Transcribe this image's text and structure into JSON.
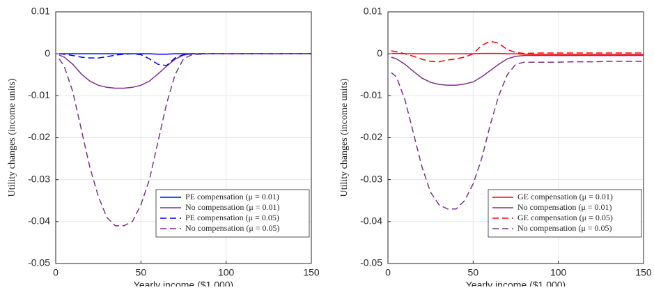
{
  "chart_data": [
    {
      "type": "line",
      "y_label": "Utility changes (income units)",
      "x_label": "Yearly income ($1,000)",
      "xlim": [
        0,
        150
      ],
      "xticks": [
        0,
        50,
        100,
        150
      ],
      "ylim": [
        -0.05,
        0.01
      ],
      "yticks": [
        0.01,
        0,
        -0.01,
        -0.02,
        -0.03,
        -0.04,
        -0.05
      ],
      "grid": true,
      "legend": "lower right",
      "x": [
        2,
        5,
        10,
        15,
        20,
        25,
        30,
        35,
        40,
        45,
        50,
        55,
        60,
        65,
        70,
        75,
        80,
        90,
        100,
        110,
        120,
        130,
        140,
        150
      ],
      "series": [
        {
          "name": "PE compensation (μ = 0.01)",
          "color": "#0000ff",
          "dashed": false,
          "values": [
            0,
            0,
            0,
            0,
            0,
            0,
            0,
            0,
            0,
            0,
            0,
            0,
            -0.0001,
            -0.0001,
            0,
            0,
            0,
            0,
            0,
            0,
            0,
            0,
            0,
            0
          ]
        },
        {
          "name": "No compensation (μ = 0.01)",
          "color": "#7e2f8e",
          "dashed": false,
          "values": [
            -0.0003,
            -0.0008,
            -0.0025,
            -0.0048,
            -0.0065,
            -0.0075,
            -0.008,
            -0.0082,
            -0.0082,
            -0.008,
            -0.0075,
            -0.0065,
            -0.0048,
            -0.003,
            -0.0013,
            -0.0003,
            0,
            0,
            0,
            0,
            0,
            0,
            0,
            0
          ]
        },
        {
          "name": "PE compensation (μ = 0.05)",
          "color": "#0000ff",
          "dashed": true,
          "values": [
            0,
            -0.0001,
            -0.0004,
            -0.0008,
            -0.001,
            -0.001,
            -0.0007,
            -0.0003,
            -0.0001,
            0,
            -0.0002,
            -0.0012,
            -0.0025,
            -0.0028,
            -0.001,
            -0.0002,
            0,
            0,
            0,
            0,
            0,
            0,
            0,
            0
          ]
        },
        {
          "name": "No compensation (μ = 0.05)",
          "color": "#7e2f8e",
          "dashed": true,
          "values": [
            -0.0012,
            -0.003,
            -0.009,
            -0.018,
            -0.027,
            -0.034,
            -0.039,
            -0.041,
            -0.041,
            -0.04,
            -0.036,
            -0.03,
            -0.021,
            -0.012,
            -0.005,
            -0.0012,
            -0.0002,
            0,
            0,
            0,
            0,
            0,
            0,
            0
          ]
        }
      ]
    },
    {
      "type": "line",
      "y_label": "Utility changes (income units)",
      "x_label": "Yearly income ($1,000)",
      "xlim": [
        0,
        150
      ],
      "xticks": [
        0,
        50,
        100,
        150
      ],
      "ylim": [
        -0.05,
        0.01
      ],
      "yticks": [
        0.01,
        0,
        -0.01,
        -0.02,
        -0.03,
        -0.04,
        -0.05
      ],
      "grid": true,
      "legend": "lower right",
      "x": [
        2,
        5,
        10,
        15,
        20,
        25,
        30,
        35,
        40,
        45,
        50,
        55,
        60,
        65,
        70,
        75,
        80,
        90,
        100,
        110,
        120,
        130,
        140,
        150
      ],
      "series": [
        {
          "name": "GE compensation (μ = 0.01)",
          "color": "#ff0000",
          "dashed": false,
          "values": [
            0.0001,
            0.0001,
            0,
            0,
            0,
            0,
            0,
            0,
            0,
            0,
            0,
            0.0001,
            0.0001,
            0.0001,
            0,
            0,
            -0.0001,
            -0.0002,
            -0.0002,
            -0.0002,
            -0.0002,
            -0.0002,
            -0.0002,
            -0.0002
          ]
        },
        {
          "name": "No compensation (μ = 0.01)",
          "color": "#7e2f8e",
          "dashed": false,
          "values": [
            -0.0008,
            -0.0012,
            -0.0025,
            -0.0042,
            -0.0058,
            -0.0068,
            -0.0073,
            -0.0075,
            -0.0075,
            -0.0072,
            -0.0067,
            -0.0055,
            -0.004,
            -0.0025,
            -0.0012,
            -0.0006,
            -0.0004,
            -0.0004,
            -0.0004,
            -0.0004,
            -0.0004,
            -0.0004,
            -0.0004,
            -0.0004
          ]
        },
        {
          "name": "GE compensation (μ = 0.05)",
          "color": "#ff0000",
          "dashed": true,
          "values": [
            0.0007,
            0.0005,
            0,
            -0.0006,
            -0.0013,
            -0.0018,
            -0.0019,
            -0.0015,
            -0.0012,
            -0.0008,
            0,
            0.002,
            0.003,
            0.0025,
            0.001,
            0.0003,
            0.0001,
            0.0002,
            0.0002,
            0.0002,
            0.0002,
            0.0002,
            0.0002,
            0.0002
          ]
        },
        {
          "name": "No compensation (μ = 0.05)",
          "color": "#7e2f8e",
          "dashed": true,
          "values": [
            -0.0045,
            -0.0055,
            -0.011,
            -0.019,
            -0.027,
            -0.033,
            -0.036,
            -0.037,
            -0.037,
            -0.035,
            -0.031,
            -0.025,
            -0.017,
            -0.01,
            -0.005,
            -0.0025,
            -0.002,
            -0.002,
            -0.002,
            -0.0019,
            -0.0019,
            -0.0018,
            -0.0018,
            -0.0018
          ]
        }
      ]
    }
  ]
}
